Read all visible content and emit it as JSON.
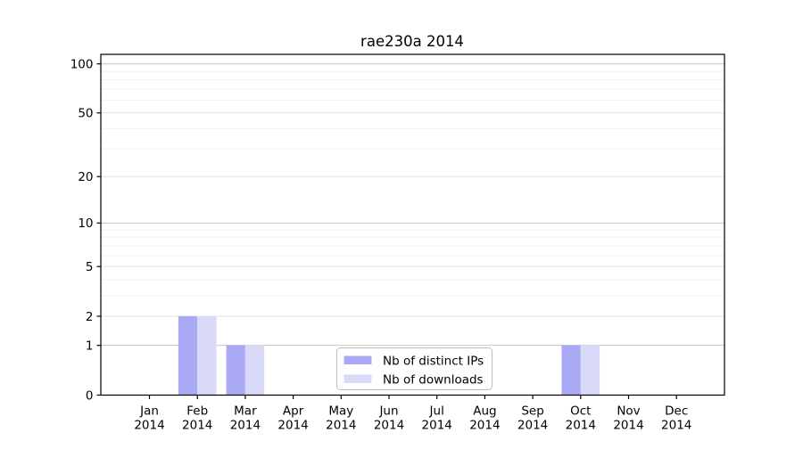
{
  "chart_data": {
    "type": "bar",
    "title": "rae230a 2014",
    "categories": [
      "Jan",
      "Feb",
      "Mar",
      "Apr",
      "May",
      "Jun",
      "Jul",
      "Aug",
      "Sep",
      "Oct",
      "Nov",
      "Dec"
    ],
    "year": "2014",
    "series": [
      {
        "name": "Nb of distinct IPs",
        "color": "#a9a9f6",
        "values": [
          0,
          2,
          1,
          0,
          0,
          0,
          0,
          0,
          0,
          1,
          0,
          0
        ]
      },
      {
        "name": "Nb of downloads",
        "color": "#d9d9f8",
        "values": [
          0,
          2,
          1,
          0,
          0,
          0,
          0,
          0,
          0,
          1,
          0,
          0
        ]
      }
    ],
    "y_scale": "log10(1+x)",
    "y_ticks": [
      0,
      1,
      2,
      5,
      10,
      20,
      50,
      100
    ],
    "y_minor_gridlines": [
      3,
      4,
      6,
      7,
      8,
      9,
      30,
      40,
      60,
      70,
      80,
      90
    ],
    "ylim_top": 114,
    "xlabel": "",
    "ylabel": "",
    "grid": true,
    "legend_position": "lower center",
    "colors": {
      "grid_power": "#c6c6c6",
      "grid_labeled": "#e2e2e2",
      "grid_minor": "#f1f1f1",
      "axis": "#000000",
      "background": "#ffffff",
      "legend_border": "#bdbdbd",
      "legend_bg": "#ffffff"
    }
  }
}
